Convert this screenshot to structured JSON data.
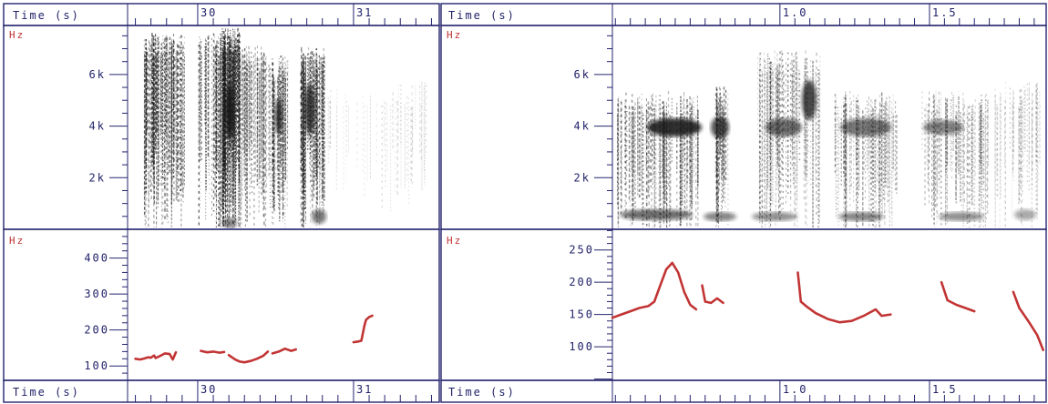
{
  "colors": {
    "frame": "#24246e",
    "label": "#22226a",
    "unit": "#c23434",
    "pitch": "#c23434",
    "ink": "#202020"
  },
  "chart_data": [
    {
      "type": "heatmap",
      "panel": "spectrogram-left",
      "time_label": "Time (s)",
      "unit_label": "Hz",
      "x_ticks": [
        "30",
        "31"
      ],
      "y_ticks": [
        "6k",
        "4k",
        "2k"
      ],
      "ylim": [
        0,
        7900
      ],
      "xlim": [
        29.55,
        31.55
      ]
    },
    {
      "type": "line",
      "panel": "pitch-left",
      "time_label": "Time (s)",
      "unit_label": "Hz",
      "x_ticks": [
        "30",
        "31"
      ],
      "y_ticks": [
        "400",
        "300",
        "200",
        "100"
      ],
      "ylim": [
        60,
        480
      ],
      "xlim": [
        29.55,
        31.55
      ],
      "series": [
        {
          "x": [
            29.6,
            29.63,
            29.66,
            29.68,
            29.7,
            29.72,
            29.73,
            29.76,
            29.79,
            29.82,
            29.84,
            29.86
          ],
          "y": [
            120,
            118,
            121,
            124,
            123,
            129,
            122,
            128,
            135,
            133,
            118,
            138
          ]
        },
        {
          "x": [
            30.02,
            30.06,
            30.1,
            30.14,
            30.17
          ],
          "y": [
            142,
            138,
            140,
            137,
            139
          ]
        },
        {
          "x": [
            30.2,
            30.24,
            30.27,
            30.3,
            30.34,
            30.38,
            30.42,
            30.45
          ],
          "y": [
            130,
            118,
            112,
            110,
            114,
            120,
            128,
            140
          ]
        },
        {
          "x": [
            30.48,
            30.52,
            30.56,
            30.6,
            30.63
          ],
          "y": [
            135,
            140,
            148,
            142,
            146
          ]
        },
        {
          "x": [
            31.0,
            31.03,
            31.05,
            31.07,
            31.08,
            31.1,
            31.12
          ],
          "y": [
            166,
            168,
            170,
            212,
            228,
            236,
            240
          ]
        }
      ]
    },
    {
      "type": "heatmap",
      "panel": "spectrogram-right",
      "time_label": "Time (s)",
      "unit_label": "Hz",
      "x_ticks": [
        "1.0",
        "1.5"
      ],
      "y_ticks": [
        "6k",
        "4k",
        "2k"
      ],
      "ylim": [
        0,
        7900
      ],
      "xlim": [
        0.44,
        1.89
      ]
    },
    {
      "type": "line",
      "panel": "pitch-right",
      "time_label": "Time (s)",
      "unit_label": "Hz",
      "x_ticks": [
        "1.0",
        "1.5"
      ],
      "y_ticks": [
        "250",
        "200",
        "150",
        "100"
      ],
      "ylim": [
        48,
        282
      ],
      "xlim": [
        0.44,
        1.89
      ],
      "series": [
        {
          "x": [
            0.44,
            0.47,
            0.5,
            0.53,
            0.56,
            0.58,
            0.6,
            0.62,
            0.64,
            0.66,
            0.68,
            0.7,
            0.72
          ],
          "y": [
            145,
            150,
            155,
            160,
            163,
            170,
            195,
            220,
            230,
            215,
            185,
            165,
            158
          ]
        },
        {
          "x": [
            0.74,
            0.75,
            0.77,
            0.79,
            0.81
          ],
          "y": [
            195,
            170,
            168,
            175,
            168
          ]
        },
        {
          "x": [
            1.06,
            1.07,
            1.09,
            1.12,
            1.16,
            1.2,
            1.24,
            1.28,
            1.32,
            1.34,
            1.37
          ],
          "y": [
            215,
            170,
            162,
            152,
            143,
            138,
            140,
            148,
            158,
            148,
            150
          ]
        },
        {
          "x": [
            1.54,
            1.56,
            1.59,
            1.62,
            1.65
          ],
          "y": [
            200,
            172,
            165,
            160,
            155
          ]
        },
        {
          "x": [
            1.78,
            1.8,
            1.83,
            1.86,
            1.88
          ],
          "y": [
            185,
            160,
            140,
            118,
            95
          ]
        }
      ]
    }
  ]
}
